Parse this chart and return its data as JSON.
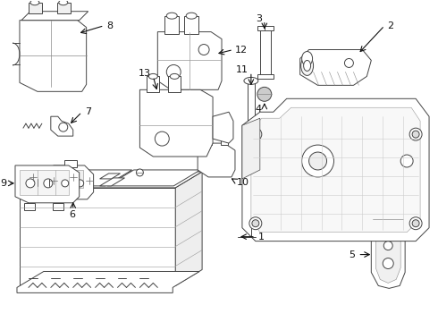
{
  "background_color": "#ffffff",
  "figsize": [
    4.9,
    3.6
  ],
  "dpi": 100,
  "image_b64": ""
}
